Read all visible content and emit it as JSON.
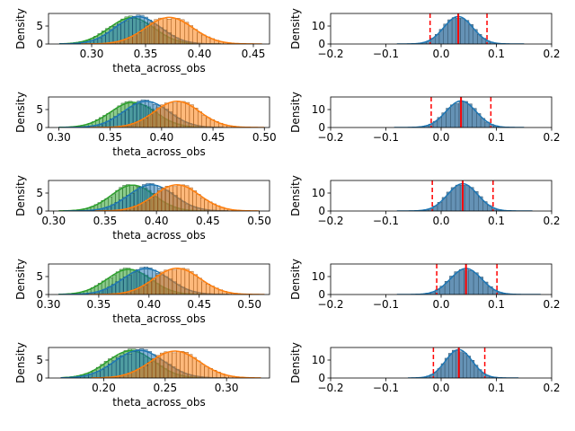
{
  "colors": {
    "blue": "#1f77b4",
    "orange": "#ff7f0e",
    "green": "#2ca02c",
    "red": "#ff0000",
    "hist_blue": "#4a7fa8"
  },
  "chart_data": [
    {
      "type": "area",
      "panel": "left",
      "row": 0,
      "xlabel": "theta_across_obs",
      "ylabel": "Density",
      "xlim": [
        0.26,
        0.465
      ],
      "ylim": [
        0,
        8.5
      ],
      "xticks": [
        0.3,
        0.35,
        0.4,
        0.45
      ],
      "xticklabels": [
        "0.30",
        "0.35",
        "0.40",
        "0.45"
      ],
      "yticks": [
        0,
        5
      ],
      "yticklabels": [
        "0",
        "5"
      ],
      "series": [
        {
          "color": "#2ca02c",
          "mean": 0.337,
          "sd": 0.021,
          "peak": 7.3,
          "min": 0.27,
          "max": 0.42
        },
        {
          "color": "#1f77b4",
          "mean": 0.343,
          "sd": 0.021,
          "peak": 7.6,
          "min": 0.27,
          "max": 0.42
        },
        {
          "color": "#ff7f0e",
          "mean": 0.372,
          "sd": 0.022,
          "peak": 7.4,
          "min": 0.29,
          "max": 0.458
        }
      ]
    },
    {
      "type": "area",
      "panel": "left",
      "row": 1,
      "xlabel": "theta_across_obs",
      "ylabel": "Density",
      "xlim": [
        0.29,
        0.505
      ],
      "ylim": [
        0,
        8.5
      ],
      "xticks": [
        0.3,
        0.35,
        0.4,
        0.45,
        0.5
      ],
      "xticklabels": [
        "0.30",
        "0.35",
        "0.40",
        "0.45",
        "0.50"
      ],
      "yticks": [
        0,
        5
      ],
      "yticklabels": [
        "0",
        "5"
      ],
      "series": [
        {
          "color": "#2ca02c",
          "mean": 0.372,
          "sd": 0.022,
          "peak": 7.0,
          "min": 0.3,
          "max": 0.45
        },
        {
          "color": "#1f77b4",
          "mean": 0.385,
          "sd": 0.022,
          "peak": 7.3,
          "min": 0.3,
          "max": 0.46
        },
        {
          "color": "#ff7f0e",
          "mean": 0.415,
          "sd": 0.022,
          "peak": 7.3,
          "min": 0.33,
          "max": 0.5
        }
      ]
    },
    {
      "type": "area",
      "panel": "left",
      "row": 2,
      "xlabel": "theta_across_obs",
      "ylabel": "Density",
      "xlim": [
        0.295,
        0.51
      ],
      "ylim": [
        0,
        8.5
      ],
      "xticks": [
        0.3,
        0.35,
        0.4,
        0.45,
        0.5
      ],
      "xticklabels": [
        "0.30",
        "0.35",
        "0.40",
        "0.45",
        "0.50"
      ],
      "yticks": [
        0,
        5
      ],
      "yticklabels": [
        "0",
        "5"
      ],
      "series": [
        {
          "color": "#2ca02c",
          "mean": 0.377,
          "sd": 0.021,
          "peak": 7.2,
          "min": 0.305,
          "max": 0.45
        },
        {
          "color": "#1f77b4",
          "mean": 0.395,
          "sd": 0.022,
          "peak": 7.3,
          "min": 0.31,
          "max": 0.47
        },
        {
          "color": "#ff7f0e",
          "mean": 0.42,
          "sd": 0.022,
          "peak": 7.3,
          "min": 0.34,
          "max": 0.5
        }
      ]
    },
    {
      "type": "area",
      "panel": "left",
      "row": 3,
      "xlabel": "theta_across_obs",
      "ylabel": "Density",
      "xlim": [
        0.3,
        0.52
      ],
      "ylim": [
        0,
        8.5
      ],
      "xticks": [
        0.3,
        0.35,
        0.4,
        0.45,
        0.5
      ],
      "xticklabels": [
        "0.30",
        "0.35",
        "0.40",
        "0.45",
        "0.50"
      ],
      "yticks": [
        0,
        5
      ],
      "yticklabels": [
        "0",
        "5"
      ],
      "series": [
        {
          "color": "#2ca02c",
          "mean": 0.38,
          "sd": 0.022,
          "peak": 7.0,
          "min": 0.31,
          "max": 0.46
        },
        {
          "color": "#1f77b4",
          "mean": 0.397,
          "sd": 0.023,
          "peak": 7.2,
          "min": 0.31,
          "max": 0.48
        },
        {
          "color": "#ff7f0e",
          "mean": 0.428,
          "sd": 0.023,
          "peak": 7.3,
          "min": 0.34,
          "max": 0.515
        }
      ]
    },
    {
      "type": "area",
      "panel": "left",
      "row": 4,
      "xlabel": "theta_across_obs",
      "ylabel": "Density",
      "xlim": [
        0.155,
        0.335
      ],
      "ylim": [
        0,
        8.5
      ],
      "xticks": [
        0.2,
        0.25,
        0.3
      ],
      "xticklabels": [
        "0.20",
        "0.25",
        "0.30"
      ],
      "yticks": [
        0,
        5
      ],
      "yticklabels": [
        "0",
        "5"
      ],
      "series": [
        {
          "color": "#2ca02c",
          "mean": 0.222,
          "sd": 0.019,
          "peak": 7.6,
          "min": 0.165,
          "max": 0.3
        },
        {
          "color": "#1f77b4",
          "mean": 0.229,
          "sd": 0.02,
          "peak": 7.7,
          "min": 0.165,
          "max": 0.3
        },
        {
          "color": "#ff7f0e",
          "mean": 0.258,
          "sd": 0.02,
          "peak": 7.5,
          "min": 0.19,
          "max": 0.328
        }
      ]
    },
    {
      "type": "bar",
      "panel": "right",
      "row": 0,
      "xlabel": "",
      "ylabel": "Density",
      "xlim": [
        -0.2,
        0.2
      ],
      "ylim": [
        0,
        17
      ],
      "xticks": [
        -0.2,
        -0.1,
        0.0,
        0.1,
        0.2
      ],
      "xticklabels": [
        "−0.2",
        "−0.1",
        "0.0",
        "0.1",
        "0.2"
      ],
      "yticks": [
        0,
        10
      ],
      "yticklabels": [
        "0",
        "10"
      ],
      "series": [
        {
          "color": "#1f77b4",
          "mean": 0.031,
          "sd": 0.026,
          "peak": 15.3,
          "min": -0.08,
          "max": 0.15
        }
      ],
      "vlines": {
        "ci_low": -0.02,
        "mean": 0.031,
        "ci_high": 0.083
      }
    },
    {
      "type": "bar",
      "panel": "right",
      "row": 1,
      "xlabel": "",
      "ylabel": "Density",
      "xlim": [
        -0.2,
        0.2
      ],
      "ylim": [
        0,
        17
      ],
      "xticks": [
        -0.2,
        -0.1,
        0.0,
        0.1,
        0.2
      ],
      "xticklabels": [
        "−0.2",
        "−0.1",
        "0.0",
        "0.1",
        "0.2"
      ],
      "yticks": [
        0,
        10
      ],
      "yticklabels": [
        "0",
        "10"
      ],
      "series": [
        {
          "color": "#1f77b4",
          "mean": 0.036,
          "sd": 0.027,
          "peak": 14.8,
          "min": -0.085,
          "max": 0.15
        }
      ],
      "vlines": {
        "ci_low": -0.018,
        "mean": 0.036,
        "ci_high": 0.09
      }
    },
    {
      "type": "bar",
      "panel": "right",
      "row": 2,
      "xlabel": "",
      "ylabel": "Density",
      "xlim": [
        -0.2,
        0.2
      ],
      "ylim": [
        0,
        17
      ],
      "xticks": [
        -0.2,
        -0.1,
        0.0,
        0.1,
        0.2
      ],
      "xticklabels": [
        "−0.2",
        "−0.1",
        "0.0",
        "0.1",
        "0.2"
      ],
      "yticks": [
        0,
        10
      ],
      "yticklabels": [
        "0",
        "10"
      ],
      "series": [
        {
          "color": "#1f77b4",
          "mean": 0.039,
          "sd": 0.027,
          "peak": 15.2,
          "min": -0.08,
          "max": 0.165
        }
      ],
      "vlines": {
        "ci_low": -0.016,
        "mean": 0.039,
        "ci_high": 0.094
      }
    },
    {
      "type": "bar",
      "panel": "right",
      "row": 3,
      "xlabel": "",
      "ylabel": "Density",
      "xlim": [
        -0.2,
        0.2
      ],
      "ylim": [
        0,
        17
      ],
      "xticks": [
        -0.2,
        -0.1,
        0.0,
        0.1,
        0.2
      ],
      "xticklabels": [
        "−0.2",
        "−0.1",
        "0.0",
        "0.1",
        "0.2"
      ],
      "yticks": [
        0,
        10
      ],
      "yticklabels": [
        "0",
        "10"
      ],
      "series": [
        {
          "color": "#1f77b4",
          "mean": 0.045,
          "sd": 0.028,
          "peak": 14.5,
          "min": -0.08,
          "max": 0.18
        }
      ],
      "vlines": {
        "ci_low": -0.008,
        "mean": 0.045,
        "ci_high": 0.101
      }
    },
    {
      "type": "bar",
      "panel": "right",
      "row": 4,
      "xlabel": "",
      "ylabel": "Density",
      "xlim": [
        -0.2,
        0.2
      ],
      "ylim": [
        0,
        17
      ],
      "xticks": [
        -0.2,
        -0.1,
        0.0,
        0.1,
        0.2
      ],
      "xticklabels": [
        "−0.2",
        "−0.1",
        "0.0",
        "0.1",
        "0.2"
      ],
      "yticks": [
        0,
        10
      ],
      "yticklabels": [
        "0",
        "10"
      ],
      "series": [
        {
          "color": "#1f77b4",
          "mean": 0.032,
          "sd": 0.024,
          "peak": 15.8,
          "min": -0.06,
          "max": 0.14
        }
      ],
      "vlines": {
        "ci_low": -0.014,
        "mean": 0.032,
        "ci_high": 0.079
      }
    }
  ]
}
